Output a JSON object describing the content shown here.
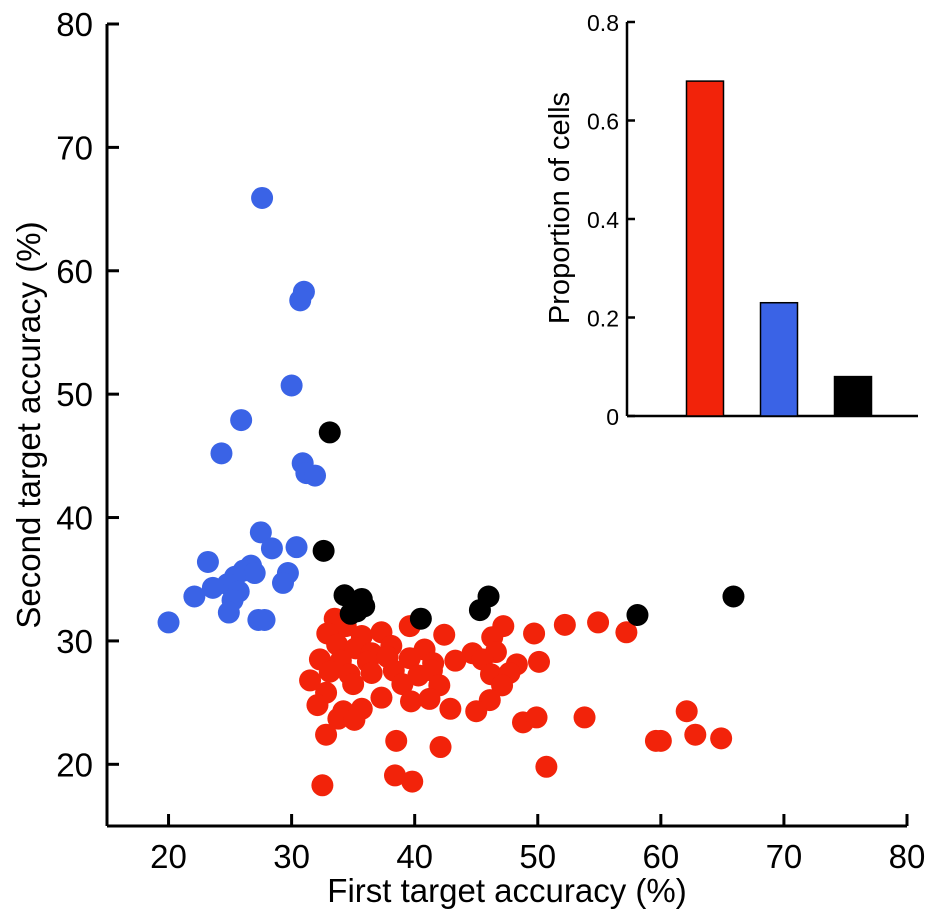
{
  "chart_data": [
    {
      "type": "scatter",
      "xlabel": "First target accuracy (%)",
      "ylabel": "Second target accuracy (%)",
      "xlim": [
        15,
        80
      ],
      "ylim": [
        15,
        80
      ],
      "xticks": [
        "20",
        "30",
        "40",
        "50",
        "60",
        "70",
        "80"
      ],
      "yticks": [
        "20",
        "30",
        "40",
        "50",
        "60",
        "70",
        "80"
      ],
      "grid": false,
      "series": [
        {
          "color": "#3a63e6",
          "points": [
            [
              27.6,
              65.9
            ],
            [
              31.0,
              58.3
            ],
            [
              30.7,
              57.6
            ],
            [
              30.0,
              50.7
            ],
            [
              25.9,
              47.9
            ],
            [
              24.3,
              45.2
            ],
            [
              30.9,
              44.4
            ],
            [
              31.2,
              43.6
            ],
            [
              31.9,
              43.4
            ],
            [
              27.5,
              38.8
            ],
            [
              30.4,
              37.6
            ],
            [
              28.4,
              37.5
            ],
            [
              23.2,
              36.4
            ],
            [
              26.7,
              36.1
            ],
            [
              26.1,
              35.7
            ],
            [
              27.0,
              35.5
            ],
            [
              25.4,
              35.2
            ],
            [
              29.7,
              35.5
            ],
            [
              29.3,
              34.7
            ],
            [
              24.8,
              34.6
            ],
            [
              23.6,
              34.3
            ],
            [
              25.7,
              34.0
            ],
            [
              22.1,
              33.6
            ],
            [
              25.2,
              33.3
            ],
            [
              24.9,
              32.3
            ],
            [
              27.3,
              31.7
            ],
            [
              27.8,
              31.7
            ],
            [
              20.0,
              31.5
            ]
          ]
        },
        {
          "color": "#f2230a",
          "points": [
            [
              33.5,
              31.8
            ],
            [
              34.4,
              31.2
            ],
            [
              39.6,
              31.2
            ],
            [
              47.2,
              31.2
            ],
            [
              49.7,
              30.6
            ],
            [
              52.2,
              31.3
            ],
            [
              54.9,
              31.5
            ],
            [
              57.2,
              30.7
            ],
            [
              32.9,
              30.6
            ],
            [
              35.7,
              30.4
            ],
            [
              37.3,
              30.7
            ],
            [
              42.4,
              30.5
            ],
            [
              46.3,
              30.3
            ],
            [
              33.7,
              29.7
            ],
            [
              35.2,
              29.4
            ],
            [
              36.5,
              29.0
            ],
            [
              38.1,
              29.6
            ],
            [
              40.8,
              29.3
            ],
            [
              44.7,
              29.0
            ],
            [
              46.6,
              29.1
            ],
            [
              32.3,
              28.5
            ],
            [
              34.0,
              28.4
            ],
            [
              36.2,
              28.3
            ],
            [
              37.8,
              28.7
            ],
            [
              39.6,
              28.6
            ],
            [
              41.5,
              28.2
            ],
            [
              43.3,
              28.4
            ],
            [
              45.5,
              28.5
            ],
            [
              48.3,
              28.1
            ],
            [
              50.1,
              28.3
            ],
            [
              33.1,
              27.5
            ],
            [
              34.7,
              27.3
            ],
            [
              36.5,
              27.4
            ],
            [
              38.3,
              27.6
            ],
            [
              40.3,
              27.2
            ],
            [
              41.4,
              27.6
            ],
            [
              46.2,
              27.3
            ],
            [
              47.7,
              27.4
            ],
            [
              31.5,
              26.8
            ],
            [
              35.0,
              26.5
            ],
            [
              39.0,
              26.5
            ],
            [
              42.0,
              26.4
            ],
            [
              47.1,
              26.4
            ],
            [
              32.8,
              25.8
            ],
            [
              37.3,
              25.4
            ],
            [
              39.7,
              25.1
            ],
            [
              41.2,
              25.3
            ],
            [
              46.1,
              25.2
            ],
            [
              32.1,
              24.8
            ],
            [
              34.2,
              24.3
            ],
            [
              35.7,
              24.5
            ],
            [
              42.9,
              24.5
            ],
            [
              45.0,
              24.3
            ],
            [
              33.8,
              23.7
            ],
            [
              35.1,
              23.6
            ],
            [
              48.8,
              23.4
            ],
            [
              49.9,
              23.8
            ],
            [
              53.8,
              23.8
            ],
            [
              62.1,
              24.3
            ],
            [
              32.8,
              22.4
            ],
            [
              38.5,
              21.9
            ],
            [
              42.1,
              21.4
            ],
            [
              59.6,
              21.9
            ],
            [
              60.0,
              21.9
            ],
            [
              62.8,
              22.4
            ],
            [
              64.9,
              22.1
            ],
            [
              50.7,
              19.8
            ],
            [
              38.4,
              19.1
            ],
            [
              39.8,
              18.6
            ],
            [
              32.5,
              18.3
            ]
          ]
        },
        {
          "color": "#000000",
          "points": [
            [
              33.1,
              46.9
            ],
            [
              32.6,
              37.3
            ],
            [
              34.3,
              33.7
            ],
            [
              35.7,
              33.4
            ],
            [
              35.9,
              32.8
            ],
            [
              34.8,
              32.2
            ],
            [
              35.3,
              32.4
            ],
            [
              40.5,
              31.8
            ],
            [
              45.3,
              32.5
            ],
            [
              46.0,
              33.6
            ],
            [
              58.1,
              32.1
            ],
            [
              65.9,
              33.6
            ]
          ]
        }
      ]
    },
    {
      "type": "bar",
      "ylabel": "Proportion of cells",
      "ylim": [
        0,
        0.8
      ],
      "yticks": [
        "0",
        "0.2",
        "0.4",
        "0.6",
        "0.8"
      ],
      "values": [
        0.68,
        0.23,
        0.08
      ],
      "colors": [
        "#f2230a",
        "#3a63e6",
        "#000000"
      ],
      "grid": false
    }
  ]
}
